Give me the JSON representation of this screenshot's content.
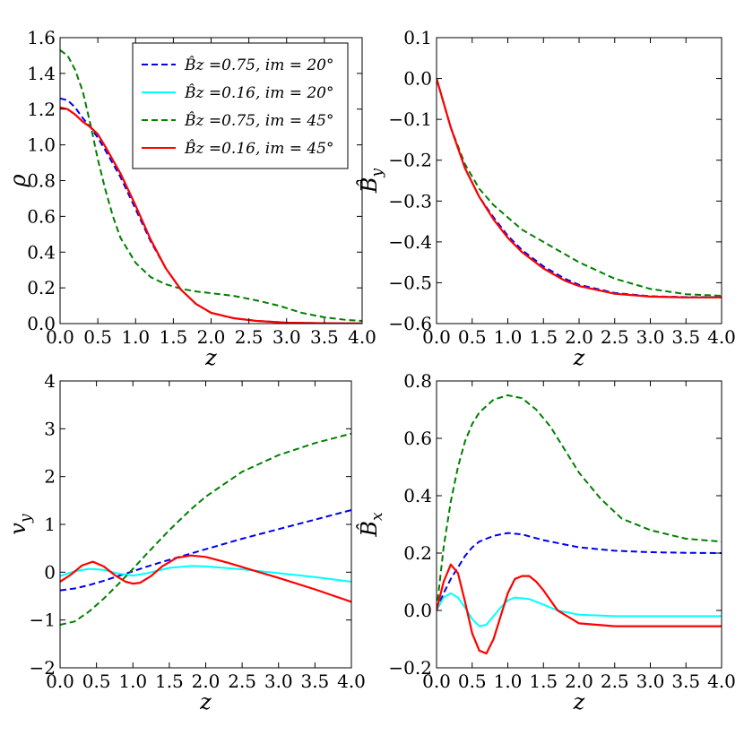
{
  "colors": {
    "blue": "#0000ee",
    "cyan": "#00ffff",
    "green": "#007f00",
    "red": "#ff0000",
    "axes": "#000000",
    "background": "#ffffff"
  },
  "legend": {
    "location": "top-right of top-left panel",
    "entries": [
      {
        "series": "s1",
        "label": "B̂z =0.75, im = 20°",
        "color": "#0000ee",
        "style": "dashed"
      },
      {
        "series": "s2",
        "label": "B̂z =0.16, im = 20°",
        "color": "#00ffff",
        "style": "solid"
      },
      {
        "series": "s3",
        "label": "B̂z =0.75, im = 45°",
        "color": "#007f00",
        "style": "dashed"
      },
      {
        "series": "s4",
        "label": "B̂z =0.16, im = 45°",
        "color": "#ff0000",
        "style": "solid"
      }
    ]
  },
  "chart_data": [
    {
      "id": "rho",
      "type": "line",
      "xlabel": "z",
      "ylabel": "ρ",
      "xlim": [
        0,
        4
      ],
      "ylim": [
        0,
        1.6
      ],
      "xticks": [
        "0.0",
        "0.5",
        "1.0",
        "1.5",
        "2.0",
        "2.5",
        "3.0",
        "3.5",
        "4.0"
      ],
      "yticks": [
        "0.0",
        "0.2",
        "0.4",
        "0.6",
        "0.8",
        "1.0",
        "1.2",
        "1.4",
        "1.6"
      ],
      "xtick_values": [
        0,
        0.5,
        1,
        1.5,
        2,
        2.5,
        3,
        3.5,
        4
      ],
      "ytick_values": [
        0,
        0.2,
        0.4,
        0.6,
        0.8,
        1.0,
        1.2,
        1.4,
        1.6
      ],
      "series": [
        {
          "name": "s1",
          "color": "#0000ee",
          "style": "dashed",
          "x": [
            0,
            0.1,
            0.2,
            0.3,
            0.4,
            0.5,
            0.6,
            0.8,
            1.0,
            1.2,
            1.4,
            1.6,
            1.8,
            2.0,
            2.3,
            2.6,
            3.0,
            3.5,
            4.0
          ],
          "y": [
            1.26,
            1.25,
            1.21,
            1.15,
            1.1,
            1.04,
            0.97,
            0.82,
            0.64,
            0.46,
            0.31,
            0.19,
            0.11,
            0.06,
            0.03,
            0.015,
            0.005,
            0.002,
            0.001
          ]
        },
        {
          "name": "s2",
          "color": "#00ffff",
          "style": "solid",
          "x": [
            0,
            0.1,
            0.2,
            0.3,
            0.4,
            0.5,
            0.6,
            0.8,
            1.0,
            1.2,
            1.4,
            1.6,
            1.8,
            2.0,
            2.3,
            2.6,
            3.0,
            3.5,
            4.0
          ],
          "y": [
            1.21,
            1.2,
            1.17,
            1.13,
            1.1,
            1.06,
            0.99,
            0.84,
            0.66,
            0.47,
            0.31,
            0.19,
            0.11,
            0.06,
            0.03,
            0.015,
            0.005,
            0.002,
            0.001
          ]
        },
        {
          "name": "s3",
          "color": "#007f00",
          "style": "dashed",
          "x": [
            0,
            0.1,
            0.2,
            0.3,
            0.4,
            0.5,
            0.6,
            0.7,
            0.8,
            1.0,
            1.2,
            1.4,
            1.6,
            1.8,
            2.0,
            2.3,
            2.6,
            2.9,
            3.2,
            3.5,
            3.8,
            4.0
          ],
          "y": [
            1.53,
            1.5,
            1.42,
            1.3,
            1.12,
            0.92,
            0.75,
            0.6,
            0.48,
            0.34,
            0.26,
            0.22,
            0.195,
            0.18,
            0.17,
            0.155,
            0.13,
            0.1,
            0.06,
            0.035,
            0.02,
            0.015
          ]
        },
        {
          "name": "s4",
          "color": "#ff0000",
          "style": "solid",
          "x": [
            0,
            0.1,
            0.2,
            0.3,
            0.4,
            0.5,
            0.6,
            0.8,
            1.0,
            1.2,
            1.4,
            1.6,
            1.8,
            2.0,
            2.3,
            2.6,
            3.0,
            3.5,
            4.0
          ],
          "y": [
            1.21,
            1.2,
            1.17,
            1.13,
            1.1,
            1.06,
            0.99,
            0.84,
            0.66,
            0.47,
            0.31,
            0.19,
            0.11,
            0.06,
            0.03,
            0.015,
            0.005,
            0.002,
            0.001
          ]
        }
      ]
    },
    {
      "id": "By",
      "type": "line",
      "xlabel": "z",
      "ylabel": "B̂y",
      "xlim": [
        0,
        4
      ],
      "ylim": [
        -0.6,
        0.1
      ],
      "xticks": [
        "0.0",
        "0.5",
        "1.0",
        "1.5",
        "2.0",
        "2.5",
        "3.0",
        "3.5",
        "4.0"
      ],
      "yticks": [
        "−0.6",
        "−0.5",
        "−0.4",
        "−0.3",
        "−0.2",
        "−0.1",
        "0.0",
        "0.1"
      ],
      "xtick_values": [
        0,
        0.5,
        1,
        1.5,
        2,
        2.5,
        3,
        3.5,
        4
      ],
      "ytick_values": [
        -0.6,
        -0.5,
        -0.4,
        -0.3,
        -0.2,
        -0.1,
        0.0,
        0.1
      ],
      "series": [
        {
          "name": "s1",
          "color": "#0000ee",
          "style": "dashed",
          "x": [
            0,
            0.2,
            0.4,
            0.6,
            0.8,
            1.0,
            1.2,
            1.5,
            1.8,
            2.0,
            2.5,
            3.0,
            3.5,
            4.0
          ],
          "y": [
            0,
            -0.12,
            -0.22,
            -0.29,
            -0.34,
            -0.385,
            -0.42,
            -0.46,
            -0.49,
            -0.505,
            -0.525,
            -0.533,
            -0.535,
            -0.535
          ]
        },
        {
          "name": "s2",
          "color": "#00ffff",
          "style": "solid",
          "x": [
            0,
            0.2,
            0.4,
            0.6,
            0.8,
            1.0,
            1.2,
            1.5,
            1.8,
            2.0,
            2.5,
            3.0,
            3.5,
            4.0
          ],
          "y": [
            0,
            -0.12,
            -0.22,
            -0.29,
            -0.345,
            -0.39,
            -0.425,
            -0.465,
            -0.495,
            -0.508,
            -0.527,
            -0.534,
            -0.536,
            -0.536
          ]
        },
        {
          "name": "s3",
          "color": "#007f00",
          "style": "dashed",
          "x": [
            0,
            0.2,
            0.4,
            0.6,
            0.8,
            1.0,
            1.2,
            1.5,
            1.8,
            2.0,
            2.5,
            3.0,
            3.5,
            4.0
          ],
          "y": [
            0,
            -0.12,
            -0.21,
            -0.27,
            -0.31,
            -0.34,
            -0.37,
            -0.4,
            -0.43,
            -0.45,
            -0.49,
            -0.515,
            -0.528,
            -0.532
          ]
        },
        {
          "name": "s4",
          "color": "#ff0000",
          "style": "solid",
          "x": [
            0,
            0.2,
            0.4,
            0.6,
            0.8,
            1.0,
            1.2,
            1.5,
            1.8,
            2.0,
            2.5,
            3.0,
            3.5,
            4.0
          ],
          "y": [
            0,
            -0.12,
            -0.22,
            -0.29,
            -0.345,
            -0.39,
            -0.425,
            -0.465,
            -0.495,
            -0.508,
            -0.527,
            -0.534,
            -0.536,
            -0.536
          ]
        }
      ]
    },
    {
      "id": "vy",
      "type": "line",
      "xlabel": "z",
      "ylabel": "vy",
      "xlim": [
        0,
        4
      ],
      "ylim": [
        -2,
        4
      ],
      "xticks": [
        "0.0",
        "0.5",
        "1.0",
        "1.5",
        "2.0",
        "2.5",
        "3.0",
        "3.5",
        "4.0"
      ],
      "yticks": [
        "−2",
        "−1",
        "0",
        "1",
        "2",
        "3",
        "4"
      ],
      "xtick_values": [
        0,
        0.5,
        1,
        1.5,
        2,
        2.5,
        3,
        3.5,
        4
      ],
      "ytick_values": [
        -2,
        -1,
        0,
        1,
        2,
        3,
        4
      ],
      "series": [
        {
          "name": "s1",
          "color": "#0000ee",
          "style": "dashed",
          "x": [
            0,
            0.2,
            0.4,
            0.6,
            0.8,
            1.0,
            1.2,
            1.5,
            2.0,
            2.5,
            3.0,
            3.5,
            4.0
          ],
          "y": [
            -0.38,
            -0.34,
            -0.27,
            -0.18,
            -0.08,
            0.02,
            0.12,
            0.26,
            0.48,
            0.7,
            0.9,
            1.1,
            1.3
          ]
        },
        {
          "name": "s2",
          "color": "#00ffff",
          "style": "solid",
          "x": [
            0,
            0.2,
            0.4,
            0.6,
            0.8,
            1.0,
            1.2,
            1.5,
            1.8,
            2.0,
            2.5,
            3.0,
            3.5,
            4.0
          ],
          "y": [
            -0.08,
            0.02,
            0.07,
            0.05,
            -0.03,
            -0.07,
            -0.02,
            0.09,
            0.13,
            0.12,
            0.06,
            -0.02,
            -0.1,
            -0.2
          ]
        },
        {
          "name": "s3",
          "color": "#007f00",
          "style": "dashed",
          "x": [
            0,
            0.2,
            0.4,
            0.6,
            0.8,
            1.0,
            1.2,
            1.5,
            1.8,
            2.0,
            2.5,
            3.0,
            3.5,
            4.0
          ],
          "y": [
            -1.1,
            -1.03,
            -0.82,
            -0.55,
            -0.25,
            0.07,
            0.4,
            0.88,
            1.32,
            1.58,
            2.1,
            2.45,
            2.7,
            2.9
          ]
        },
        {
          "name": "s4",
          "color": "#ff0000",
          "style": "solid",
          "x": [
            0,
            0.15,
            0.3,
            0.45,
            0.6,
            0.75,
            0.9,
            1.0,
            1.1,
            1.25,
            1.4,
            1.6,
            1.8,
            2.0,
            2.3,
            2.6,
            3.0,
            3.5,
            4.0
          ],
          "y": [
            -0.2,
            -0.05,
            0.14,
            0.22,
            0.12,
            -0.06,
            -0.2,
            -0.24,
            -0.22,
            -0.08,
            0.12,
            0.3,
            0.35,
            0.32,
            0.2,
            0.06,
            -0.12,
            -0.36,
            -0.62
          ]
        }
      ]
    },
    {
      "id": "Bx",
      "type": "line",
      "xlabel": "z",
      "ylabel": "B̂x",
      "xlim": [
        0,
        4
      ],
      "ylim": [
        -0.2,
        0.8
      ],
      "xticks": [
        "0.0",
        "0.5",
        "1.0",
        "1.5",
        "2.0",
        "2.5",
        "3.0",
        "3.5",
        "4.0"
      ],
      "yticks": [
        "−0.2",
        "0.0",
        "0.2",
        "0.4",
        "0.6",
        "0.8"
      ],
      "xtick_values": [
        0,
        0.5,
        1,
        1.5,
        2,
        2.5,
        3,
        3.5,
        4
      ],
      "ytick_values": [
        -0.2,
        0.0,
        0.2,
        0.4,
        0.6,
        0.8
      ],
      "series": [
        {
          "name": "s1",
          "color": "#0000ee",
          "style": "dashed",
          "x": [
            0,
            0.1,
            0.2,
            0.3,
            0.4,
            0.5,
            0.6,
            0.8,
            1.0,
            1.2,
            1.5,
            2.0,
            2.5,
            3.0,
            3.5,
            4.0
          ],
          "y": [
            0,
            0.06,
            0.11,
            0.15,
            0.19,
            0.22,
            0.24,
            0.26,
            0.27,
            0.265,
            0.245,
            0.22,
            0.208,
            0.203,
            0.201,
            0.2
          ]
        },
        {
          "name": "s2",
          "color": "#00ffff",
          "style": "solid",
          "x": [
            0,
            0.1,
            0.2,
            0.3,
            0.4,
            0.5,
            0.6,
            0.7,
            0.8,
            0.9,
            1.0,
            1.1,
            1.3,
            1.5,
            1.7,
            2.0,
            2.5,
            3.0,
            4.0
          ],
          "y": [
            0,
            0.045,
            0.06,
            0.045,
            0.01,
            -0.03,
            -0.055,
            -0.05,
            -0.02,
            0.01,
            0.035,
            0.045,
            0.04,
            0.02,
            0.0,
            -0.015,
            -0.02,
            -0.02,
            -0.02
          ]
        },
        {
          "name": "s3",
          "color": "#007f00",
          "style": "dashed",
          "x": [
            0,
            0.1,
            0.2,
            0.3,
            0.4,
            0.5,
            0.6,
            0.8,
            1.0,
            1.2,
            1.4,
            1.6,
            1.8,
            2.0,
            2.3,
            2.6,
            3.0,
            3.5,
            4.0
          ],
          "y": [
            0,
            0.22,
            0.38,
            0.5,
            0.59,
            0.65,
            0.69,
            0.735,
            0.75,
            0.74,
            0.7,
            0.64,
            0.56,
            0.48,
            0.39,
            0.32,
            0.28,
            0.25,
            0.24
          ]
        },
        {
          "name": "s4",
          "color": "#ff0000",
          "style": "solid",
          "x": [
            0,
            0.1,
            0.2,
            0.3,
            0.4,
            0.5,
            0.6,
            0.7,
            0.8,
            0.9,
            1.0,
            1.1,
            1.2,
            1.3,
            1.4,
            1.5,
            1.7,
            2.0,
            2.5,
            3.0,
            4.0
          ],
          "y": [
            0,
            0.1,
            0.16,
            0.13,
            0.03,
            -0.08,
            -0.14,
            -0.15,
            -0.1,
            -0.02,
            0.06,
            0.11,
            0.12,
            0.12,
            0.1,
            0.07,
            0.0,
            -0.045,
            -0.055,
            -0.055,
            -0.055
          ]
        }
      ]
    }
  ]
}
